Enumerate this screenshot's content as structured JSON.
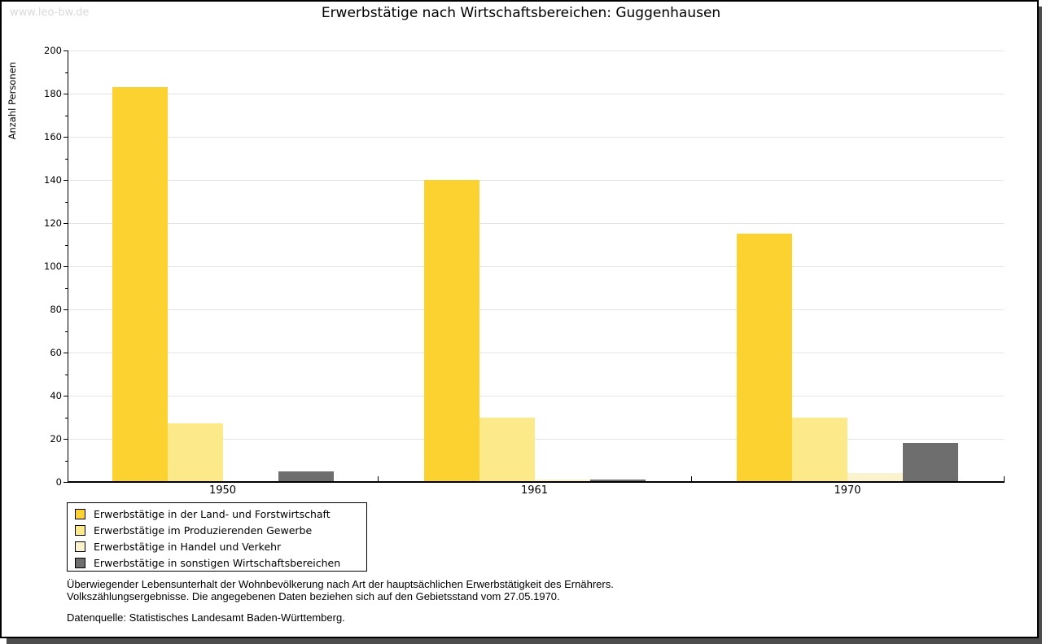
{
  "watermark": "www.leo-bw.de",
  "title": "Erwerbstätige nach Wirtschaftsbereichen: Guggenhausen",
  "chart_data": {
    "type": "bar",
    "title": "Erwerbstätige nach Wirtschaftsbereichen: Guggenhausen",
    "xlabel": "",
    "ylabel": "Anzahl Personen",
    "ylim": [
      0,
      200
    ],
    "ytick_step": 20,
    "yminor_step": 10,
    "grid": true,
    "legend_position": "bottom-left",
    "categories": [
      "1950",
      "1961",
      "1970"
    ],
    "series": [
      {
        "name": "Erwerbstätige in der Land- und Forstwirtschaft",
        "color": "#fbd22f",
        "values": [
          183,
          140,
          115
        ]
      },
      {
        "name": "Erwerbstätige im Produzierenden Gewerbe",
        "color": "#fce98a",
        "values": [
          27,
          30,
          30
        ]
      },
      {
        "name": "Erwerbstätige in Handel und Verkehr",
        "color": "#fbf3cd",
        "values": [
          0,
          1,
          4
        ]
      },
      {
        "name": "Erwerbstätige in sonstigen Wirtschaftsbereichen",
        "color": "#6e6e6e",
        "values": [
          5,
          1,
          18
        ]
      }
    ]
  },
  "footnotes": {
    "line1": "Überwiegender Lebensunterhalt der Wohnbevölkerung nach Art der hauptsächlichen Erwerbstätigkeit des Ernährers.",
    "line2": "Volkszählungsergebnisse. Die angegebenen Daten beziehen sich auf den Gebietsstand vom 27.05.1970."
  },
  "source": "Datenquelle: Statistisches Landesamt Baden-Württemberg."
}
